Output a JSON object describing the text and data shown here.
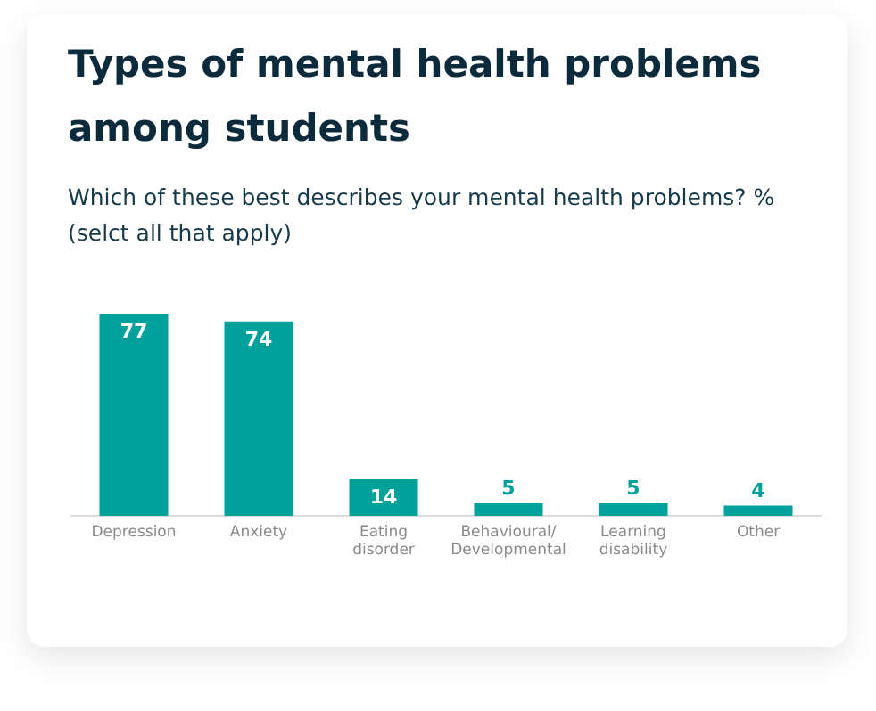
{
  "chart_data": {
    "type": "bar",
    "title": "Types of mental health problems among students",
    "subtitle": "Which of these best describes your mental health problems? %\n(selct all that apply)",
    "categories": [
      "Depression",
      "Anxiety",
      "Eating disorder",
      "Behavioural/Developmental",
      "Learning disability",
      "Other"
    ],
    "values": [
      77,
      74,
      14,
      5,
      5,
      4
    ],
    "color": "#00a19a",
    "data_labels": true,
    "grid": false,
    "legend": false
  }
}
